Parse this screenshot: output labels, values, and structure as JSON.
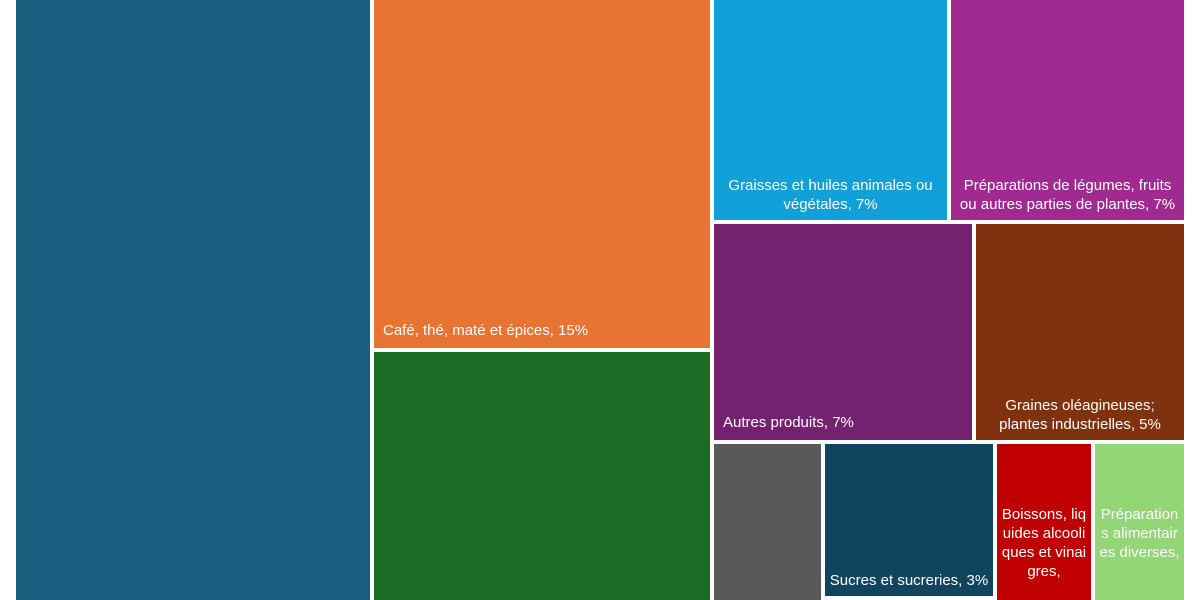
{
  "chart_data": {
    "type": "treemap",
    "items": [
      {
        "id": "tile-a",
        "label": "",
        "value": 23,
        "color": "#175e7f"
      },
      {
        "id": "tile-cafe",
        "label": "Café, thé, maté et épices, 15%",
        "value": 15,
        "color": "#e97333"
      },
      {
        "id": "tile-green",
        "label": "",
        "value": 11,
        "color": "#1b6b25"
      },
      {
        "id": "tile-graisses",
        "label": "Graisses et huiles animales ou végétales, 7%",
        "value": 7,
        "color": "#11a1d8"
      },
      {
        "id": "tile-preparations-legumes",
        "label": "Préparations de légumes, fruits ou autres parties de plantes, 7%",
        "value": 7,
        "color": "#a12a92"
      },
      {
        "id": "tile-autres",
        "label": "Autres produits, 7%",
        "value": 7,
        "color": "#74216f"
      },
      {
        "id": "tile-graines",
        "label": "Graines oléagineuses; plantes industrielles, 5%",
        "value": 5,
        "color": "#80320f"
      },
      {
        "id": "tile-gray",
        "label": "",
        "value": 3,
        "color": "#595959"
      },
      {
        "id": "tile-sucres",
        "label": "Sucres et sucreries, 3%",
        "value": 3,
        "color": "#11445f"
      },
      {
        "id": "tile-boissons",
        "label": "Boissons, liquides alcooliques et vinaigres, ",
        "value": 2,
        "color": "#c00000"
      },
      {
        "id": "tile-preparations-alimentaires",
        "label": "Préparations alimentaires diverses, ",
        "value": 2,
        "color": "#93d676"
      }
    ]
  }
}
